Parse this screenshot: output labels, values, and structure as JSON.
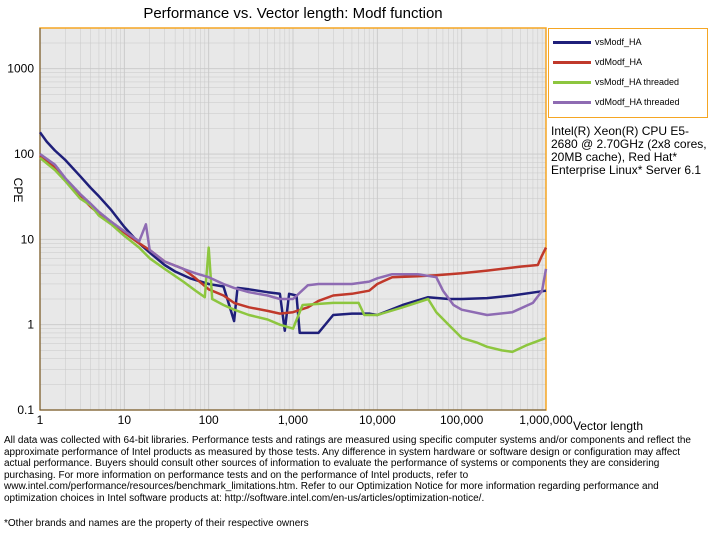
{
  "chart_data": {
    "type": "line",
    "title": "Performance vs. Vector length: Modf function",
    "xlabel": "Vector length",
    "ylabel": "CPE",
    "x_scale": "log",
    "y_scale": "log",
    "xlim": [
      1,
      1000000
    ],
    "ylim": [
      0.1,
      3000
    ],
    "x_ticks": [
      "1",
      "10",
      "100",
      "1,000",
      "10,000",
      "100,000",
      "1,000,000"
    ],
    "y_ticks": [
      "0.1",
      "1",
      "10",
      "100",
      "1000"
    ],
    "grid": true,
    "legend_position": "top-right",
    "series": [
      {
        "name": "vsModf_HA",
        "color": "#1f1f7a",
        "points": [
          [
            1,
            180
          ],
          [
            1.2,
            140
          ],
          [
            1.5,
            110
          ],
          [
            2,
            85
          ],
          [
            3,
            55
          ],
          [
            4,
            40
          ],
          [
            5,
            32
          ],
          [
            7,
            22
          ],
          [
            10,
            14
          ],
          [
            15,
            9
          ],
          [
            20,
            7
          ],
          [
            30,
            5
          ],
          [
            40,
            4.2
          ],
          [
            60,
            3.5
          ],
          [
            100,
            3.0
          ],
          [
            150,
            2.8
          ],
          [
            200,
            1.1
          ],
          [
            220,
            2.7
          ],
          [
            300,
            2.6
          ],
          [
            500,
            2.4
          ],
          [
            700,
            2.3
          ],
          [
            800,
            0.85
          ],
          [
            900,
            2.3
          ],
          [
            1100,
            2.2
          ],
          [
            1200,
            0.8
          ],
          [
            2000,
            0.8
          ],
          [
            3000,
            1.3
          ],
          [
            5000,
            1.35
          ],
          [
            8000,
            1.35
          ],
          [
            10000,
            1.3
          ],
          [
            20000,
            1.7
          ],
          [
            40000,
            2.1
          ],
          [
            70000,
            2.0
          ],
          [
            100000,
            2.0
          ],
          [
            200000,
            2.05
          ],
          [
            400000,
            2.2
          ],
          [
            1000000,
            2.5
          ]
        ]
      },
      {
        "name": "vdModf_HA",
        "color": "#c0392b",
        "points": [
          [
            1,
            95
          ],
          [
            1.5,
            70
          ],
          [
            2,
            50
          ],
          [
            3,
            32
          ],
          [
            4,
            24
          ],
          [
            5,
            20
          ],
          [
            7,
            16
          ],
          [
            10,
            12
          ],
          [
            15,
            9
          ],
          [
            20,
            7.5
          ],
          [
            30,
            5.5
          ],
          [
            50,
            4.5
          ],
          [
            70,
            3.5
          ],
          [
            100,
            2.6
          ],
          [
            150,
            2.2
          ],
          [
            200,
            1.8
          ],
          [
            300,
            1.6
          ],
          [
            500,
            1.45
          ],
          [
            700,
            1.35
          ],
          [
            1000,
            1.4
          ],
          [
            1500,
            1.6
          ],
          [
            2000,
            1.9
          ],
          [
            3000,
            2.2
          ],
          [
            5000,
            2.3
          ],
          [
            8000,
            2.5
          ],
          [
            10000,
            3.0
          ],
          [
            15000,
            3.6
          ],
          [
            30000,
            3.7
          ],
          [
            50000,
            3.8
          ],
          [
            100000,
            4.0
          ],
          [
            200000,
            4.3
          ],
          [
            500000,
            4.8
          ],
          [
            800000,
            5.0
          ],
          [
            900000,
            6.5
          ],
          [
            1000000,
            8.0
          ]
        ]
      },
      {
        "name": "vsModf_HA threaded",
        "color": "#8dc63f",
        "points": [
          [
            1,
            90
          ],
          [
            1.5,
            65
          ],
          [
            2,
            48
          ],
          [
            3,
            30
          ],
          [
            4,
            25
          ],
          [
            5,
            19
          ],
          [
            7,
            15
          ],
          [
            10,
            11
          ],
          [
            15,
            8
          ],
          [
            20,
            6
          ],
          [
            30,
            4.5
          ],
          [
            50,
            3.2
          ],
          [
            70,
            2.5
          ],
          [
            90,
            2.1
          ],
          [
            100,
            8.0
          ],
          [
            110,
            2.0
          ],
          [
            150,
            1.7
          ],
          [
            200,
            1.5
          ],
          [
            300,
            1.3
          ],
          [
            500,
            1.15
          ],
          [
            700,
            1.0
          ],
          [
            1000,
            0.9
          ],
          [
            1300,
            1.7
          ],
          [
            3000,
            1.8
          ],
          [
            6000,
            1.8
          ],
          [
            7000,
            1.3
          ],
          [
            10000,
            1.3
          ],
          [
            20000,
            1.6
          ],
          [
            40000,
            2.0
          ],
          [
            50000,
            1.4
          ],
          [
            70000,
            1.0
          ],
          [
            100000,
            0.7
          ],
          [
            150000,
            0.62
          ],
          [
            200000,
            0.55
          ],
          [
            300000,
            0.5
          ],
          [
            400000,
            0.48
          ],
          [
            600000,
            0.58
          ],
          [
            1000000,
            0.7
          ]
        ]
      },
      {
        "name": "vdModf_HA threaded",
        "color": "#8e6bb3",
        "points": [
          [
            1,
            100
          ],
          [
            1.5,
            75
          ],
          [
            2,
            52
          ],
          [
            3,
            34
          ],
          [
            4,
            26
          ],
          [
            5,
            21
          ],
          [
            7,
            16
          ],
          [
            10,
            12.5
          ],
          [
            15,
            9.5
          ],
          [
            18,
            15
          ],
          [
            20,
            7.5
          ],
          [
            30,
            5.5
          ],
          [
            50,
            4.5
          ],
          [
            70,
            4.0
          ],
          [
            100,
            3.6
          ],
          [
            150,
            3.0
          ],
          [
            200,
            2.7
          ],
          [
            300,
            2.4
          ],
          [
            500,
            2.2
          ],
          [
            700,
            2.0
          ],
          [
            1000,
            2.0
          ],
          [
            1500,
            2.9
          ],
          [
            2000,
            3.0
          ],
          [
            3000,
            3.0
          ],
          [
            5000,
            3.0
          ],
          [
            8000,
            3.2
          ],
          [
            10000,
            3.5
          ],
          [
            15000,
            3.9
          ],
          [
            30000,
            3.9
          ],
          [
            50000,
            3.6
          ],
          [
            60000,
            2.5
          ],
          [
            80000,
            1.7
          ],
          [
            100000,
            1.5
          ],
          [
            200000,
            1.3
          ],
          [
            400000,
            1.4
          ],
          [
            700000,
            1.8
          ],
          [
            900000,
            2.5
          ],
          [
            1000000,
            4.5
          ]
        ]
      }
    ]
  },
  "system_info": "Intel(R) Xeon(R) CPU E5-2680 @ 2.70GHz (2x8 cores, 20MB cache), Red Hat* Enterprise Linux* Server 6.1",
  "footnote": "All data was collected with 64-bit libraries. Performance tests and ratings are measured using specific computer systems and/or components and reflect the approximate performance of Intel products as measured by those tests. Any difference in system hardware or software design or configuration may affect actual performance. Buyers should consult other sources of information to evaluate the performance of systems or components they are considering purchasing. For more information on performance tests and on the performance of Intel products, refer to www.intel.com/performance/resources/benchmark_limitations.htm. Refer to our Optimization Notice for more information regarding performance and optimization choices in Intel software products at: http://software.intel.com/en-us/articles/optimization-notice/.",
  "footnote2": "*Other brands and names are the property of their respective owners",
  "colors": {
    "plot_border": "#f5a623",
    "plot_bg": "#e8e8e8",
    "grid": "#c8c8c8"
  }
}
